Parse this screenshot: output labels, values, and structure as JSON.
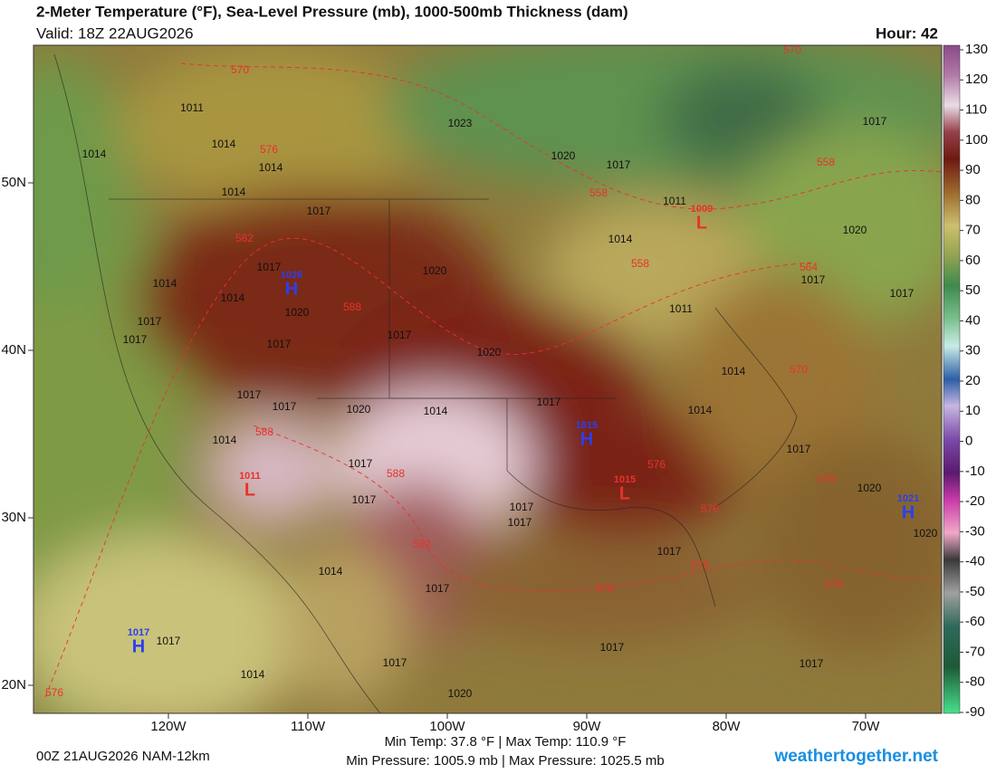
{
  "header": {
    "title": "2-Meter Temperature (°F), Sea-Level Pressure (mb), 1000-500mb Thickness (dam)",
    "valid": "Valid: 18Z 22AUG2026",
    "hour": "Hour: 42"
  },
  "colorbar": {
    "ticks": [
      130,
      120,
      110,
      100,
      90,
      80,
      70,
      60,
      50,
      40,
      30,
      20,
      10,
      0,
      -10,
      -20,
      -30,
      -40,
      -50,
      -60,
      -70,
      -80,
      -90
    ]
  },
  "axes": {
    "longitudes": [
      "120W",
      "110W",
      "100W",
      "90W",
      "80W",
      "70W"
    ],
    "latitudes": [
      "50N",
      "40N",
      "30N",
      "20N"
    ]
  },
  "pressure_centers": [
    {
      "letter": "H",
      "value": 1026
    },
    {
      "letter": "H",
      "value": 1015
    },
    {
      "letter": "L",
      "value": 1009
    },
    {
      "letter": "L",
      "value": 1015
    },
    {
      "letter": "L",
      "value": 1011
    },
    {
      "letter": "H",
      "value": 1021
    },
    {
      "letter": "H",
      "value": 1017
    }
  ],
  "isobar_labels": [
    1011,
    1014,
    1014,
    1014,
    1014,
    1017,
    1017,
    1014,
    1014,
    1020,
    1017,
    1017,
    1017,
    1017,
    1020,
    1020,
    1017,
    1017,
    1020,
    1014,
    1017,
    1014,
    1014,
    1014,
    1017,
    1017,
    1017,
    1017,
    1014,
    1011,
    1020,
    1017,
    1023,
    1020,
    1017,
    1017,
    1011,
    1017,
    1020,
    1020,
    1017,
    1017,
    1014,
    1017,
    1017,
    1014,
    1017,
    1017,
    1020,
    1017
  ],
  "thickness_labels": [
    570,
    576,
    582,
    588,
    588,
    588,
    582,
    576,
    576,
    576,
    576,
    576,
    576,
    576,
    570,
    564,
    558,
    558,
    558,
    570
  ],
  "footer": {
    "model_run": "00Z 21AUG2026 NAM-12km",
    "temperature_range": "Min Temp:  37.8 °F | Max Temp: 110.9 °F",
    "pressure_range": "Min Pressure: 1005.9 mb | Max Pressure: 1025.5 mb",
    "site": "weathertogether.net"
  }
}
